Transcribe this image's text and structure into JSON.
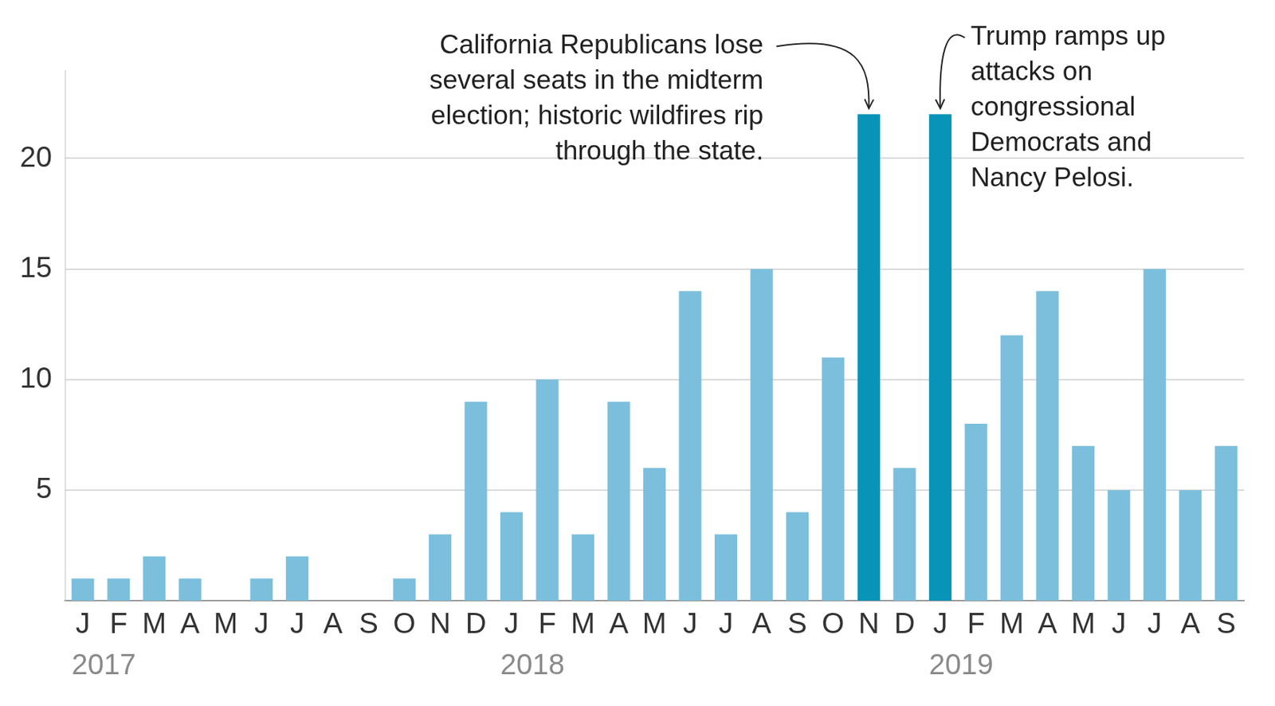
{
  "chart_data": {
    "type": "bar",
    "categories": [
      "J",
      "F",
      "M",
      "A",
      "M",
      "J",
      "J",
      "A",
      "S",
      "O",
      "N",
      "D",
      "J",
      "F",
      "M",
      "A",
      "M",
      "J",
      "J",
      "A",
      "S",
      "O",
      "N",
      "D",
      "J",
      "F",
      "M",
      "A",
      "M",
      "J",
      "J",
      "A",
      "S"
    ],
    "values": [
      1,
      1,
      2,
      1,
      0,
      1,
      2,
      0,
      0,
      1,
      3,
      9,
      4,
      10,
      3,
      9,
      6,
      14,
      3,
      15,
      4,
      11,
      22,
      6,
      22,
      8,
      12,
      14,
      7,
      5,
      15,
      5,
      7
    ],
    "colors": [
      "#7bbfdd",
      "#7bbfdd",
      "#7bbfdd",
      "#7bbfdd",
      "#7bbfdd",
      "#7bbfdd",
      "#7bbfdd",
      "#7bbfdd",
      "#7bbfdd",
      "#7bbfdd",
      "#7bbfdd",
      "#7bbfdd",
      "#7bbfdd",
      "#7bbfdd",
      "#7bbfdd",
      "#7bbfdd",
      "#7bbfdd",
      "#7bbfdd",
      "#7bbfdd",
      "#7bbfdd",
      "#7bbfdd",
      "#7bbfdd",
      "#0894b8",
      "#7bbfdd",
      "#0894b8",
      "#7bbfdd",
      "#7bbfdd",
      "#7bbfdd",
      "#7bbfdd",
      "#7bbfdd",
      "#7bbfdd",
      "#7bbfdd",
      "#7bbfdd"
    ],
    "ylim": [
      0,
      24
    ],
    "yticks": [
      5,
      10,
      15,
      20
    ],
    "grid": true,
    "years": [
      {
        "label": "2017",
        "count": 12
      },
      {
        "label": "2018",
        "count": 12
      },
      {
        "label": "2019",
        "count": 9
      }
    ],
    "annotations": [
      {
        "at": 22,
        "lines": [
          "California Republicans lose",
          "several seats in the midterm",
          "election; historic wildfires rip",
          "through the state."
        ]
      },
      {
        "at": 24,
        "lines": [
          "Trump ramps up",
          "attacks on",
          "congressional",
          "Democrats and",
          "Nancy Pelosi."
        ]
      }
    ]
  }
}
